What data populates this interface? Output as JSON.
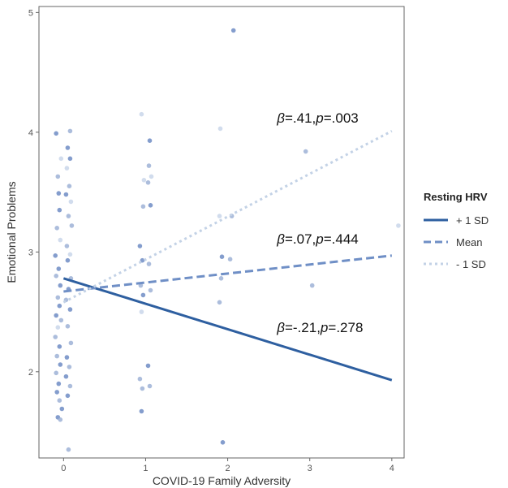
{
  "chart_data": {
    "type": "scatter",
    "xlabel": "COVID-19 Family Adversity",
    "ylabel": "Emotional Problems",
    "xlim": [
      -0.3,
      4.15
    ],
    "ylim": [
      1.28,
      5.05
    ],
    "xticks": [
      "0",
      "1",
      "2",
      "3",
      "4"
    ],
    "yticks": [
      "2",
      "3",
      "4",
      "5"
    ],
    "grid": false,
    "legend": {
      "title": "Resting HRV",
      "placement": "right",
      "entries": [
        "+ 1 SD",
        "Mean",
        "- 1 SD"
      ]
    },
    "colors": {
      "plus_sd": "#2e5fa0",
      "mean": "#6f8fc6",
      "minus_sd": "#c3d2e6",
      "panel_border": "#666666"
    },
    "lines": [
      {
        "group": "plus_sd",
        "x": [
          0,
          4
        ],
        "y": [
          2.78,
          1.93
        ]
      },
      {
        "group": "mean",
        "x": [
          0,
          4
        ],
        "y": [
          2.67,
          2.97
        ]
      },
      {
        "group": "minus_sd",
        "x": [
          0,
          4
        ],
        "y": [
          2.58,
          4.01
        ]
      }
    ],
    "annotations": [
      {
        "text": "β=.41,p=.003",
        "x": 2.6,
        "y": 4.08
      },
      {
        "text": "β=.07,p=.444",
        "x": 2.6,
        "y": 3.07
      },
      {
        "text": "β=-.21,p=.278",
        "x": 2.6,
        "y": 2.33
      }
    ],
    "points": [
      {
        "x": -0.09,
        "y": 3.99,
        "g": 2
      },
      {
        "x": -0.07,
        "y": 3.63,
        "g": 1
      },
      {
        "x": -0.06,
        "y": 3.49,
        "g": 2
      },
      {
        "x": -0.05,
        "y": 3.35,
        "g": 2
      },
      {
        "x": -0.08,
        "y": 3.2,
        "g": 1
      },
      {
        "x": -0.04,
        "y": 3.1,
        "g": 0
      },
      {
        "x": -0.1,
        "y": 2.97,
        "g": 2
      },
      {
        "x": -0.06,
        "y": 2.86,
        "g": 2
      },
      {
        "x": -0.09,
        "y": 2.8,
        "g": 1
      },
      {
        "x": -0.04,
        "y": 2.72,
        "g": 2
      },
      {
        "x": -0.07,
        "y": 2.62,
        "g": 1
      },
      {
        "x": -0.05,
        "y": 2.55,
        "g": 2
      },
      {
        "x": -0.09,
        "y": 2.47,
        "g": 2
      },
      {
        "x": -0.03,
        "y": 2.43,
        "g": 1
      },
      {
        "x": -0.07,
        "y": 2.37,
        "g": 0
      },
      {
        "x": -0.1,
        "y": 2.29,
        "g": 1
      },
      {
        "x": -0.05,
        "y": 2.21,
        "g": 2
      },
      {
        "x": -0.08,
        "y": 2.13,
        "g": 1
      },
      {
        "x": -0.04,
        "y": 2.06,
        "g": 2
      },
      {
        "x": -0.09,
        "y": 1.99,
        "g": 1
      },
      {
        "x": -0.06,
        "y": 1.9,
        "g": 2
      },
      {
        "x": -0.08,
        "y": 1.83,
        "g": 2
      },
      {
        "x": -0.05,
        "y": 1.76,
        "g": 1
      },
      {
        "x": -0.02,
        "y": 1.69,
        "g": 2
      },
      {
        "x": -0.07,
        "y": 1.62,
        "g": 2
      },
      {
        "x": -0.04,
        "y": 1.6,
        "g": 1
      },
      {
        "x": -0.03,
        "y": 3.78,
        "g": 0
      },
      {
        "x": 0.08,
        "y": 4.01,
        "g": 1
      },
      {
        "x": 0.05,
        "y": 3.87,
        "g": 2
      },
      {
        "x": 0.08,
        "y": 3.78,
        "g": 2
      },
      {
        "x": 0.04,
        "y": 3.7,
        "g": 0
      },
      {
        "x": 0.07,
        "y": 3.55,
        "g": 1
      },
      {
        "x": 0.03,
        "y": 3.48,
        "g": 2
      },
      {
        "x": 0.09,
        "y": 3.42,
        "g": 0
      },
      {
        "x": 0.06,
        "y": 3.3,
        "g": 1
      },
      {
        "x": 0.1,
        "y": 3.22,
        "g": 1
      },
      {
        "x": 0.04,
        "y": 3.05,
        "g": 1
      },
      {
        "x": 0.08,
        "y": 2.98,
        "g": 0
      },
      {
        "x": 0.05,
        "y": 2.93,
        "g": 2
      },
      {
        "x": 0.09,
        "y": 2.78,
        "g": 1
      },
      {
        "x": 0.06,
        "y": 2.69,
        "g": 2
      },
      {
        "x": 0.03,
        "y": 2.6,
        "g": 1
      },
      {
        "x": 0.08,
        "y": 2.52,
        "g": 2
      },
      {
        "x": 0.05,
        "y": 2.38,
        "g": 1
      },
      {
        "x": 0.09,
        "y": 2.24,
        "g": 1
      },
      {
        "x": 0.04,
        "y": 2.12,
        "g": 2
      },
      {
        "x": 0.07,
        "y": 2.04,
        "g": 1
      },
      {
        "x": 0.03,
        "y": 1.96,
        "g": 2
      },
      {
        "x": 0.08,
        "y": 1.88,
        "g": 1
      },
      {
        "x": 0.05,
        "y": 1.8,
        "g": 2
      },
      {
        "x": 0.06,
        "y": 1.35,
        "g": 1
      },
      {
        "x": 0.95,
        "y": 4.15,
        "g": 0
      },
      {
        "x": 0.98,
        "y": 3.6,
        "g": 0
      },
      {
        "x": 0.97,
        "y": 3.38,
        "g": 1
      },
      {
        "x": 0.93,
        "y": 3.05,
        "g": 2
      },
      {
        "x": 0.96,
        "y": 2.93,
        "g": 2
      },
      {
        "x": 0.94,
        "y": 2.72,
        "g": 1
      },
      {
        "x": 0.97,
        "y": 2.64,
        "g": 2
      },
      {
        "x": 0.95,
        "y": 2.5,
        "g": 0
      },
      {
        "x": 0.93,
        "y": 1.94,
        "g": 1
      },
      {
        "x": 0.96,
        "y": 1.86,
        "g": 1
      },
      {
        "x": 0.95,
        "y": 1.67,
        "g": 2
      },
      {
        "x": 1.05,
        "y": 3.93,
        "g": 2
      },
      {
        "x": 1.04,
        "y": 3.72,
        "g": 1
      },
      {
        "x": 1.07,
        "y": 3.63,
        "g": 0
      },
      {
        "x": 1.03,
        "y": 3.58,
        "g": 1
      },
      {
        "x": 1.06,
        "y": 3.39,
        "g": 2
      },
      {
        "x": 1.04,
        "y": 2.9,
        "g": 1
      },
      {
        "x": 1.06,
        "y": 2.68,
        "g": 1
      },
      {
        "x": 1.03,
        "y": 2.05,
        "g": 2
      },
      {
        "x": 1.05,
        "y": 1.88,
        "g": 1
      },
      {
        "x": 1.91,
        "y": 4.03,
        "g": 0
      },
      {
        "x": 1.9,
        "y": 3.3,
        "g": 0
      },
      {
        "x": 1.93,
        "y": 2.96,
        "g": 2
      },
      {
        "x": 1.92,
        "y": 2.78,
        "g": 1
      },
      {
        "x": 1.9,
        "y": 2.58,
        "g": 1
      },
      {
        "x": 1.94,
        "y": 1.41,
        "g": 2
      },
      {
        "x": 2.07,
        "y": 4.85,
        "g": 2
      },
      {
        "x": 2.05,
        "y": 3.3,
        "g": 1
      },
      {
        "x": 2.03,
        "y": 2.94,
        "g": 1
      },
      {
        "x": 2.95,
        "y": 3.84,
        "g": 1
      },
      {
        "x": 3.03,
        "y": 2.72,
        "g": 1
      },
      {
        "x": 4.08,
        "y": 3.22,
        "g": 0
      }
    ]
  }
}
